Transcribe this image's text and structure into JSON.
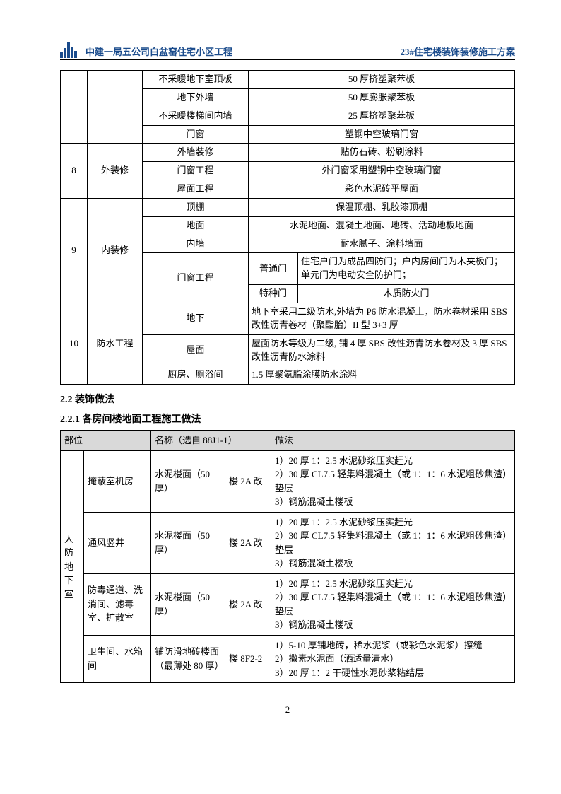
{
  "header": {
    "left": "中建一局五公司白盆窑住宅小区工程",
    "right": "23#住宅楼装饰装修施工方案"
  },
  "table1": {
    "rows": [
      {
        "c3": "不采暖地下室顶板",
        "c4": "50 厚挤塑聚苯板"
      },
      {
        "c3": "地下外墙",
        "c4": "50 厚膨胀聚苯板"
      },
      {
        "c3": "不采暖楼梯间内墙",
        "c4": "25 厚挤塑聚苯板"
      },
      {
        "c3": "门窗",
        "c4": "塑钢中空玻璃门窗"
      }
    ],
    "g8": {
      "num": "8",
      "name": "外装修",
      "rows": [
        {
          "c3": "外墙装修",
          "c4": "贴仿石砖、粉刷涂料"
        },
        {
          "c3": "门窗工程",
          "c4": "外门窗采用塑钢中空玻璃门窗"
        },
        {
          "c3": "屋面工程",
          "c4": "彩色水泥砖平屋面"
        }
      ]
    },
    "g9": {
      "num": "9",
      "name": "内装修",
      "r1": {
        "c3": "顶棚",
        "c4": "保温顶棚、乳胶漆顶棚"
      },
      "r2": {
        "c3": "地面",
        "c4": "水泥地面、混凝土地面、地砖、活动地板地面"
      },
      "r3": {
        "c3": "内墙",
        "c4": "耐水腻子、涂料墙面"
      },
      "r4": {
        "c3": "门窗工程",
        "sub1": "普通门",
        "sub1v": "住宅户门为成品四防门；户内房间门为木夹板门；单元门为电动安全防护门；",
        "sub2": "特种门",
        "sub2v": "木质防火门"
      }
    },
    "g10": {
      "num": "10",
      "name": "防水工程",
      "r1": {
        "c3": "地下",
        "c4": "地下室采用二级防水,外墙为 P6 防水混凝土，防水卷材采用 SBS 改性沥青卷材（聚酯胎）II 型 3+3 厚"
      },
      "r2": {
        "c3": "屋面",
        "c4": "屋面防水等级为二级, 铺 4 厚 SBS 改性沥青防水卷材及 3 厚 SBS 改性沥青防水涂料"
      },
      "r3": {
        "c3": "厨房、厕浴间",
        "c4": "1.5 厚聚氨脂涂膜防水涂料"
      }
    }
  },
  "sec22": "2.2 装饰做法",
  "sec221": "2.2.1 各房间楼地面工程施工做法",
  "table2": {
    "head": {
      "h1": "部位",
      "h2": "名称（选自 88J1-1）",
      "h3": "做法"
    },
    "groupLabel": "人防地下室",
    "rows": [
      {
        "a": "掩蔽室机房",
        "b": "水泥楼面（50 厚）",
        "c": "楼 2A 改",
        "d": "1）20 厚 1：2.5 水泥砂浆压实赶光\n2）30 厚 CL7.5 轻集料混凝土（或 1：1：6 水泥粗砂焦渣）垫层\n3）钢筋混凝土楼板"
      },
      {
        "a": "通风竖井",
        "b": "水泥楼面（50 厚）",
        "c": "楼 2A 改",
        "d": "1）20 厚 1：2.5 水泥砂浆压实赶光\n2）30 厚 CL7.5 轻集料混凝土（或 1：1：6 水泥粗砂焦渣）垫层\n3）钢筋混凝土楼板"
      },
      {
        "a": "防毒通道、洗消间、滤毒室、扩散室",
        "b": "水泥楼面（50 厚）",
        "c": "楼 2A 改",
        "d": "1）20 厚 1：2.5 水泥砂浆压实赶光\n2）30 厚 CL7.5 轻集料混凝土（或 1：1：6 水泥粗砂焦渣）垫层\n3）钢筋混凝土楼板"
      },
      {
        "a": "卫生间、水箱间",
        "b": "铺防滑地砖楼面（最薄处 80 厚）",
        "c": "楼 8F2-2",
        "d": "1）5-10 厚铺地砖，稀水泥浆（或彩色水泥浆）擦缝\n2）撒素水泥面（洒适量清水）\n3）20 厚 1：2 干硬性水泥砂浆粘结层"
      }
    ]
  },
  "pageNumber": "2"
}
